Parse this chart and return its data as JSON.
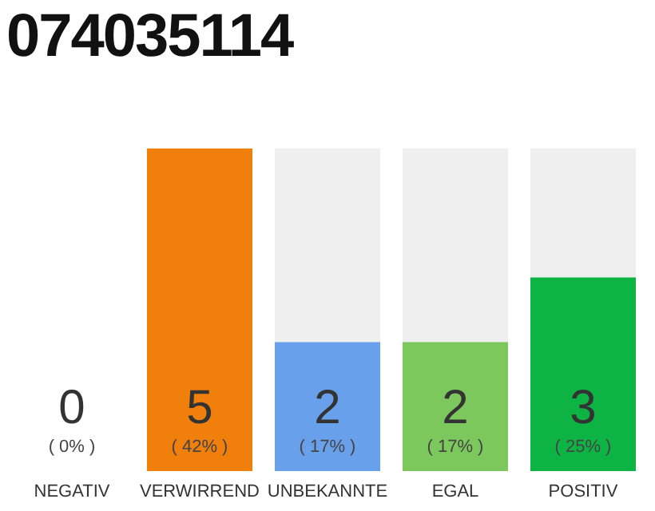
{
  "chart_data": {
    "type": "bar",
    "title": "074035114",
    "categories": [
      "NEGATIV",
      "VERWIRREND",
      "UNBEKANNTE",
      "EGAL",
      "POSITIV"
    ],
    "values": [
      0,
      5,
      2,
      2,
      3
    ],
    "colors": [
      "#b0b0b0",
      "#f07f0c",
      "#68a0ec",
      "#7cc85c",
      "#0db444"
    ],
    "data_labels": true,
    "annotations": [
      "( 0% )",
      "( 42% )",
      "( 17% )",
      "( 17% )",
      "( 25% )"
    ],
    "ylim": [
      0,
      5
    ],
    "tick_labels": "x",
    "grid": false,
    "legend": false
  }
}
